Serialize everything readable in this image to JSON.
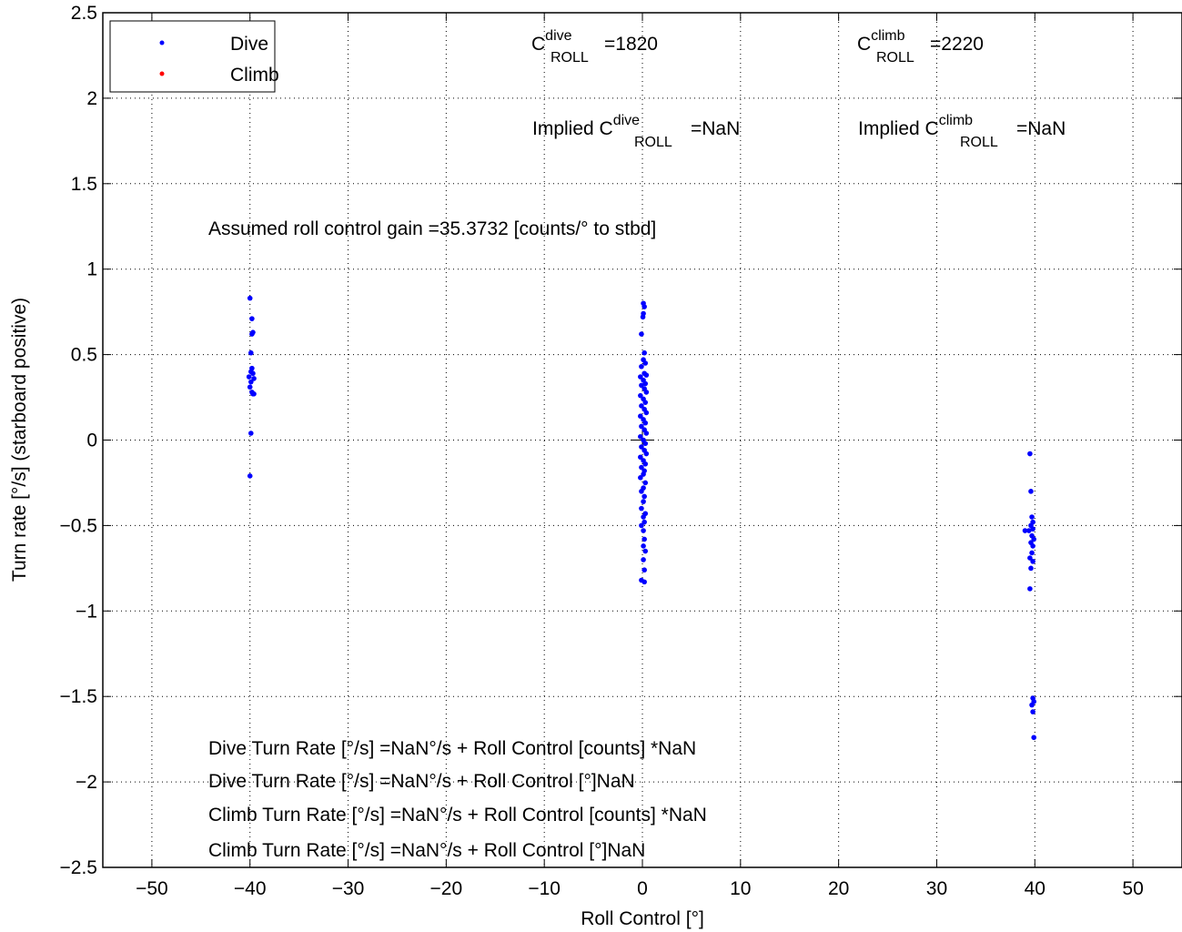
{
  "chart_data": {
    "type": "scatter",
    "xlabel": "Roll Control [°]",
    "ylabel": "Turn rate [°/s] (starboard positive)",
    "xlim": [
      -55,
      55
    ],
    "ylim": [
      -2.5,
      2.5
    ],
    "xticks": [
      -50,
      -40,
      -30,
      -20,
      -10,
      0,
      10,
      20,
      30,
      40,
      50
    ],
    "xtick_labels": [
      "−50",
      "−40",
      "−30",
      "−20",
      "−10",
      "0",
      "10",
      "20",
      "30",
      "40",
      "50"
    ],
    "yticks": [
      -2.5,
      -2,
      -1.5,
      -1,
      -0.5,
      0,
      0.5,
      1,
      1.5,
      2,
      2.5
    ],
    "ytick_labels": [
      "−2.5",
      "−2",
      "−1.5",
      "−1",
      "−0.5",
      "0",
      "0.5",
      "1",
      "1.5",
      "2",
      "2.5"
    ],
    "grid": true,
    "legend_position": "top-left",
    "series": [
      {
        "name": "Dive",
        "color": "#0000ff",
        "points": [
          [
            -40,
            0.83
          ],
          [
            -39.8,
            0.71
          ],
          [
            -39.7,
            0.63
          ],
          [
            -39.8,
            0.62
          ],
          [
            -39.9,
            0.51
          ],
          [
            -39.8,
            0.42
          ],
          [
            -39.9,
            0.4
          ],
          [
            -39.7,
            0.39
          ],
          [
            -40.1,
            0.37
          ],
          [
            -39.6,
            0.36
          ],
          [
            -39.9,
            0.34
          ],
          [
            -40,
            0.31
          ],
          [
            -39.8,
            0.28
          ],
          [
            -39.7,
            0.27
          ],
          [
            -39.6,
            0.27
          ],
          [
            -39.9,
            0.04
          ],
          [
            -40,
            -0.21
          ],
          [
            0.1,
            0.8
          ],
          [
            0.2,
            0.78
          ],
          [
            0.1,
            0.74
          ],
          [
            0.05,
            0.72
          ],
          [
            -0.1,
            0.62
          ],
          [
            0.2,
            0.51
          ],
          [
            0.1,
            0.47
          ],
          [
            0.3,
            0.45
          ],
          [
            -0.1,
            0.43
          ],
          [
            0.2,
            0.39
          ],
          [
            0.4,
            0.38
          ],
          [
            -0.2,
            0.37
          ],
          [
            0.1,
            0.35
          ],
          [
            0.3,
            0.33
          ],
          [
            -0.1,
            0.32
          ],
          [
            0.2,
            0.3
          ],
          [
            0.4,
            0.28
          ],
          [
            -0.2,
            0.26
          ],
          [
            0.1,
            0.24
          ],
          [
            0.3,
            0.22
          ],
          [
            -0.1,
            0.2
          ],
          [
            0.2,
            0.18
          ],
          [
            0.4,
            0.16
          ],
          [
            -0.2,
            0.14
          ],
          [
            0.1,
            0.12
          ],
          [
            0.3,
            0.1
          ],
          [
            -0.1,
            0.08
          ],
          [
            0.2,
            0.06
          ],
          [
            0.4,
            0.04
          ],
          [
            -0.2,
            0.02
          ],
          [
            0.1,
            0.0
          ],
          [
            0.3,
            -0.02
          ],
          [
            -0.1,
            -0.04
          ],
          [
            0.2,
            -0.06
          ],
          [
            0.4,
            -0.08
          ],
          [
            -0.2,
            -0.1
          ],
          [
            0.1,
            -0.12
          ],
          [
            0.3,
            -0.14
          ],
          [
            -0.1,
            -0.16
          ],
          [
            0.2,
            -0.18
          ],
          [
            0.1,
            -0.2
          ],
          [
            -0.2,
            -0.22
          ],
          [
            0.3,
            -0.25
          ],
          [
            0.1,
            -0.28
          ],
          [
            -0.1,
            -0.3
          ],
          [
            0.2,
            -0.33
          ],
          [
            0.1,
            -0.36
          ],
          [
            -0.1,
            -0.4
          ],
          [
            0.3,
            -0.43
          ],
          [
            0.1,
            -0.45
          ],
          [
            0.2,
            -0.48
          ],
          [
            -0.1,
            -0.5
          ],
          [
            0.1,
            -0.53
          ],
          [
            0.2,
            -0.58
          ],
          [
            0.1,
            -0.62
          ],
          [
            0.3,
            -0.65
          ],
          [
            0.1,
            -0.7
          ],
          [
            0.2,
            -0.76
          ],
          [
            -0.1,
            -0.82
          ],
          [
            0.2,
            -0.83
          ],
          [
            39.5,
            -0.08
          ],
          [
            39.6,
            -0.3
          ],
          [
            39.7,
            -0.45
          ],
          [
            39.8,
            -0.48
          ],
          [
            39.6,
            -0.5
          ],
          [
            39.8,
            -0.52
          ],
          [
            39.4,
            -0.53
          ],
          [
            39.0,
            -0.53
          ],
          [
            39.7,
            -0.56
          ],
          [
            39.9,
            -0.58
          ],
          [
            39.6,
            -0.6
          ],
          [
            39.8,
            -0.62
          ],
          [
            39.7,
            -0.66
          ],
          [
            39.5,
            -0.69
          ],
          [
            39.8,
            -0.71
          ],
          [
            39.6,
            -0.75
          ],
          [
            39.5,
            -0.87
          ],
          [
            39.8,
            -1.51
          ],
          [
            39.9,
            -1.53
          ],
          [
            39.7,
            -1.55
          ],
          [
            39.8,
            -1.59
          ],
          [
            39.9,
            -1.74
          ]
        ]
      },
      {
        "name": "Climb",
        "color": "#ff0000",
        "points": []
      }
    ],
    "annotations": {
      "c_roll_dive": {
        "base": "C",
        "sup": "dive",
        "sub": "ROLL",
        "value": "=1820"
      },
      "c_roll_climb": {
        "base": "C",
        "sup": "climb",
        "sub": "ROLL",
        "value": "=2220"
      },
      "implied_dive": {
        "prefix": "Implied C",
        "sup": "dive",
        "sub": "ROLL",
        "value": "=NaN"
      },
      "implied_climb": {
        "prefix": "Implied C",
        "sup": "climb",
        "sub": "ROLL",
        "value": "=NaN"
      },
      "gain": "Assumed roll control gain =35.3732 [counts/° to stbd]",
      "fits": [
        "Dive Turn Rate [°/s] =NaN°/s + Roll Control [counts] *NaN",
        "Dive Turn Rate [°/s] =NaN°/s + Roll Control [°]NaN",
        "Climb Turn Rate [°/s] =NaN°/s + Roll Control [counts] *NaN",
        "Climb Turn Rate [°/s] =NaN°/s + Roll Control [°]NaN"
      ]
    }
  }
}
